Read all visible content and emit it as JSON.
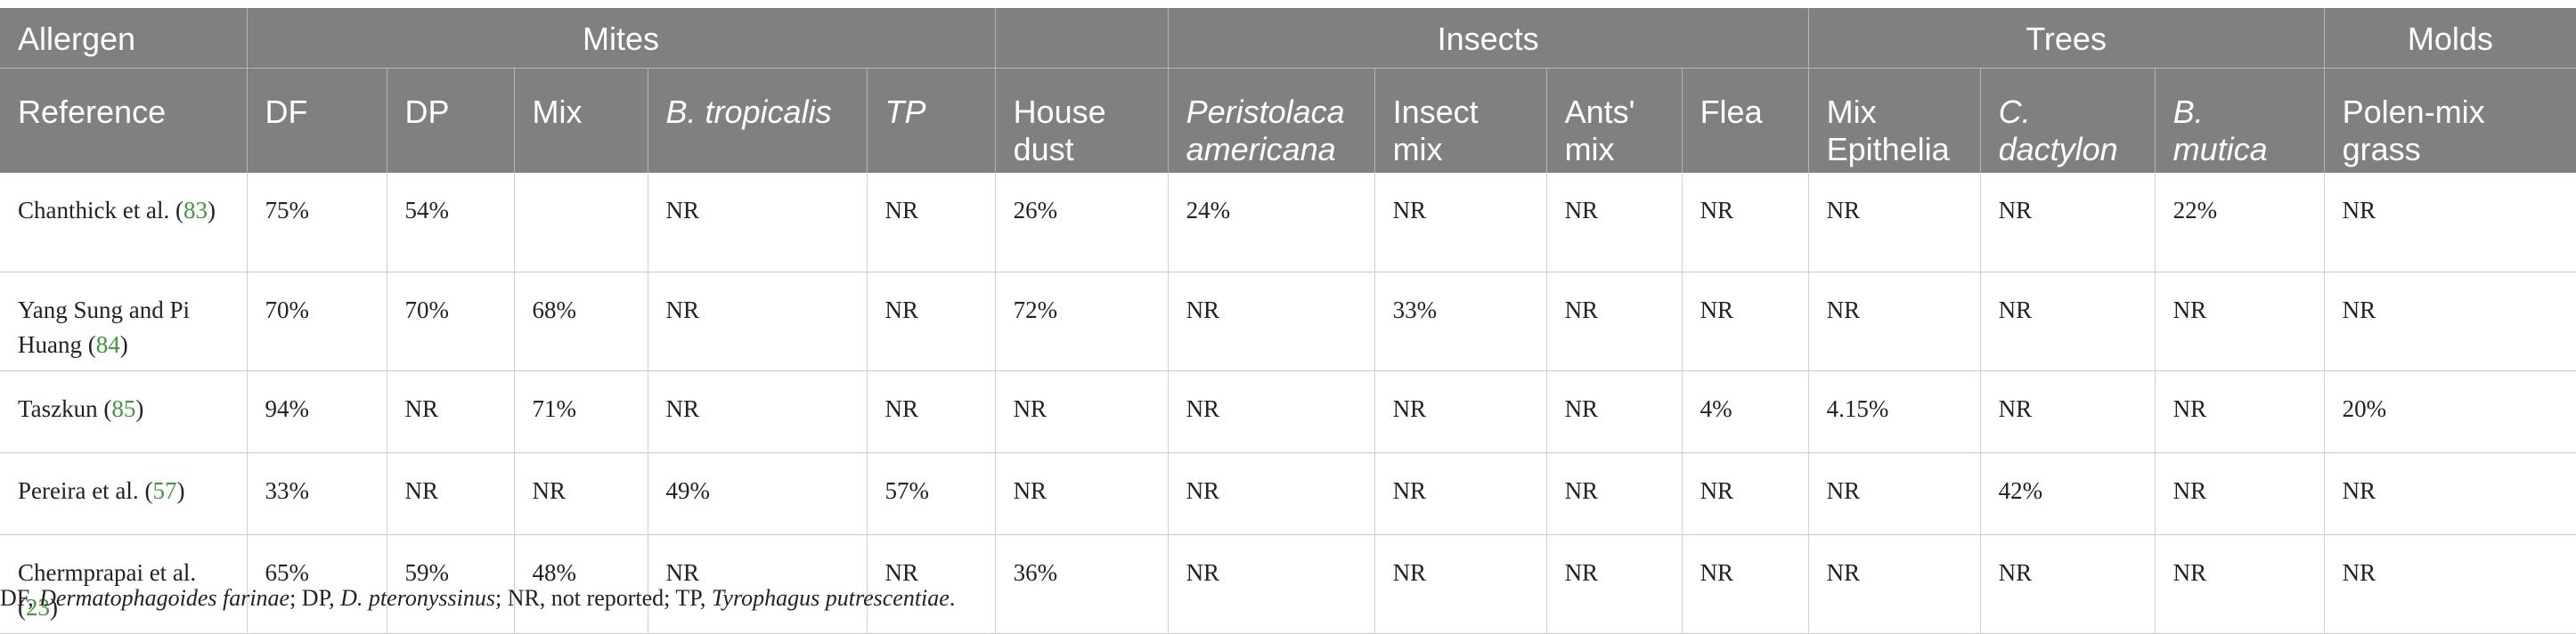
{
  "table": {
    "header_row1": {
      "allergen": "Allergen",
      "mites": "Mites",
      "insects": "Insects",
      "trees": "Trees",
      "molds": "Molds"
    },
    "header_row2": {
      "reference": "Reference",
      "df": "DF",
      "dp": "DP",
      "mix": "Mix",
      "b_tropicalis": "B. tropicalis",
      "tp": "TP",
      "house_dust": "House dust",
      "peristolaca_americana": "Peristolaca americana",
      "insect_mix": "Insect mix",
      "ants_mix": "Ants' mix",
      "flea": "Flea",
      "mix_epithelia": "Mix Epithelia",
      "c_dactylon": "C. dactylon",
      "b_mutica": "B. mutica",
      "polen_mix_grass": "Polen-mix grass"
    },
    "rows": [
      {
        "ref_text": "Chanthick et al.",
        "ref_num": "83",
        "cells": [
          "75%",
          "54%",
          "",
          "NR",
          "NR",
          "26%",
          "24%",
          "NR",
          "NR",
          "NR",
          "NR",
          "NR",
          "22%",
          "NR"
        ]
      },
      {
        "ref_text": "Yang Sung and Pi Huang",
        "ref_num": "84",
        "cells": [
          "70%",
          "70%",
          "68%",
          "NR",
          "NR",
          "72%",
          "NR",
          "33%",
          "NR",
          "NR",
          "NR",
          "NR",
          "NR",
          "NR"
        ]
      },
      {
        "ref_text": "Taszkun",
        "ref_num": "85",
        "cells": [
          "94%",
          "NR",
          "71%",
          "NR",
          "NR",
          "NR",
          "NR",
          "NR",
          "NR",
          "4%",
          "4.15%",
          "NR",
          "NR",
          "20%"
        ]
      },
      {
        "ref_text": "Pereira et al.",
        "ref_num": "57",
        "cells": [
          "33%",
          "NR",
          "NR",
          "49%",
          "57%",
          "NR",
          "NR",
          "NR",
          "NR",
          "NR",
          "NR",
          "42%",
          "NR",
          "NR"
        ]
      },
      {
        "ref_text": "Chermprapai et al.",
        "ref_num": "23",
        "cells": [
          "65%",
          "59%",
          "48%",
          "NR",
          "NR",
          "36%",
          "NR",
          "NR",
          "NR",
          "NR",
          "NR",
          "NR",
          "NR",
          "NR"
        ]
      }
    ]
  },
  "footnote": {
    "df_abbr": "DF, ",
    "df_full": "Dermatophagoides farinae",
    "dp_abbr": "; DP, ",
    "dp_full": "D. pteronyssinus",
    "nr_tp": "; NR, not reported; TP, ",
    "tp_full": "Tyrophagus putrescentiae",
    "end": "."
  }
}
